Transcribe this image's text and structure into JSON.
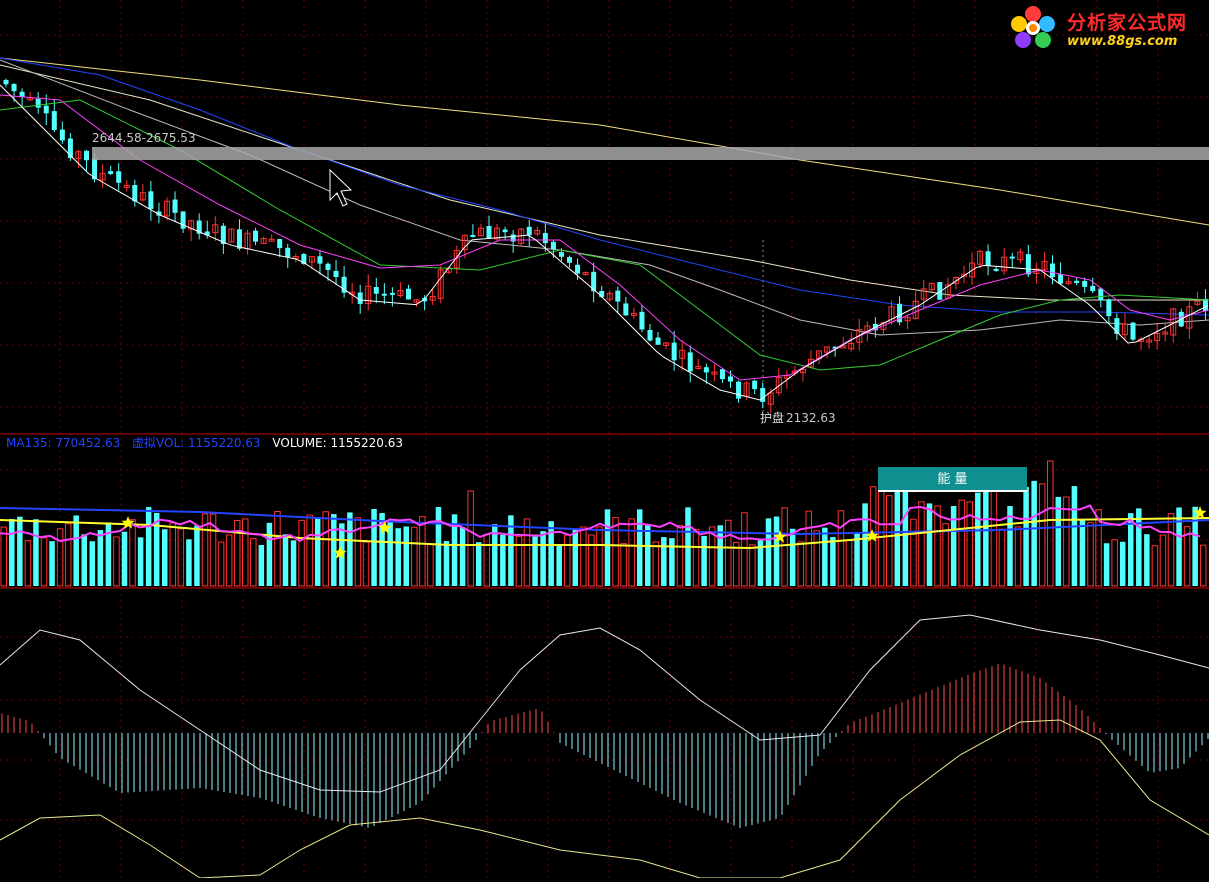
{
  "watermark": {
    "site_name": "分析家公式网",
    "site_url": "www.88gs.com",
    "logo_icon": "flower-logo-icon"
  },
  "price_panel": {
    "band_label": "2644.58-2675.53",
    "low_marker_label": "2132.63",
    "low_marker_glyph": "护盘"
  },
  "volume_panel": {
    "ma135_text": "MA135: 770452.63",
    "virtual_vol_text": "虚拟VOL: 1155220.63",
    "volume_text": "VOLUME: 1155220.63",
    "energy_label": "能 量"
  },
  "colors": {
    "up": "#ff3232",
    "down": "#54ffff",
    "ma5": "#ffffff",
    "ma10": "#ff40ff",
    "ma20": "#33cc33",
    "ma60": "#2244ff",
    "ma_long": "#ffff99",
    "grid": "#6a0000",
    "separator": "#c00000",
    "volume_label_blue": "#2244ff",
    "star": "#ffff00"
  },
  "chart_data": [
    {
      "type": "candlestick",
      "panel": "price",
      "y_range": [
        2132.63,
        2800
      ],
      "candles": 150,
      "moving_averages": [
        "ma5-white",
        "ma10-magenta",
        "ma20-green",
        "ma60-blue",
        "ma_long-yellow"
      ]
    },
    {
      "type": "bar",
      "panel": "volume",
      "ma135": 770452.63,
      "virtual_vol": 1155220.63,
      "volume": 1155220.63
    },
    {
      "type": "histogram",
      "panel": "oscillator",
      "lines": [
        "fast-white",
        "slow-yellow"
      ]
    }
  ]
}
